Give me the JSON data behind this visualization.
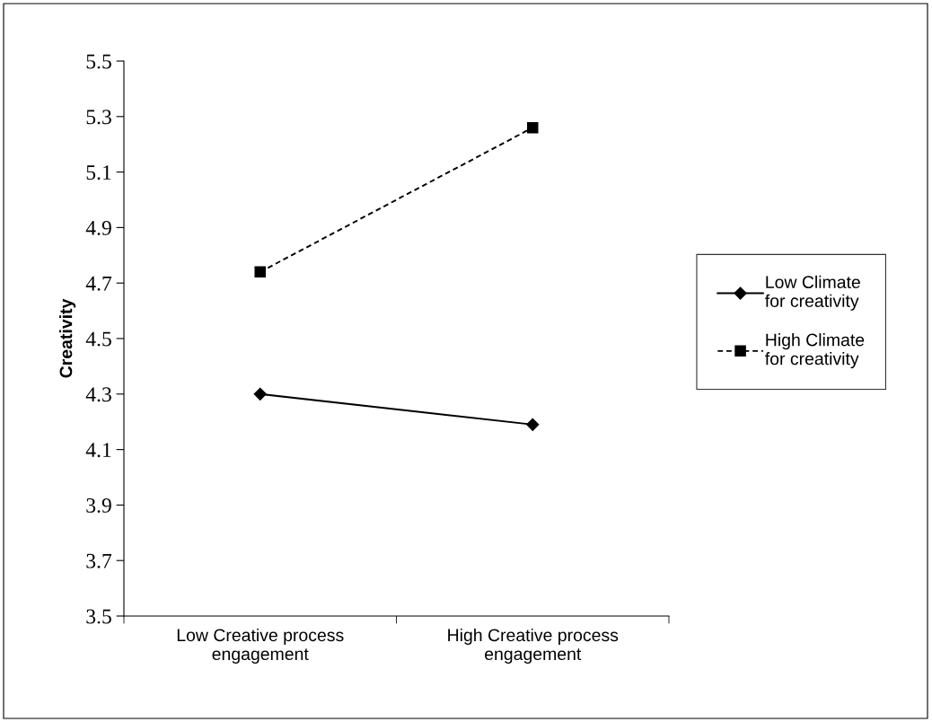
{
  "chart_data": {
    "type": "line",
    "ylabel": "Creativity",
    "categories": [
      "Low Creative process\nengagement",
      "High Creative process\nengagement"
    ],
    "series": [
      {
        "name": "Low Climate\nfor creativity",
        "color": "#000000",
        "values": [
          4.3,
          4.19
        ],
        "marker": "diamond",
        "line_style": "solid"
      },
      {
        "name": "High Climate\nfor creativity",
        "color": "#000000",
        "values": [
          4.74,
          5.26
        ],
        "marker": "square",
        "line_style": "dashed"
      }
    ],
    "ylim": [
      3.5,
      5.5
    ],
    "yticks": [
      {
        "value": 3.5,
        "label": "3.5"
      },
      {
        "value": 3.7,
        "label": "3.7"
      },
      {
        "value": 3.9,
        "label": "3.9"
      },
      {
        "value": 4.1,
        "label": "4.1"
      },
      {
        "value": 4.3,
        "label": "4.3"
      },
      {
        "value": 4.5,
        "label": "4.5"
      },
      {
        "value": 4.7,
        "label": "4.7"
      },
      {
        "value": 4.9,
        "label": "4.9"
      },
      {
        "value": 5.1,
        "label": "5.1"
      },
      {
        "value": 5.3,
        "label": "5.3"
      },
      {
        "value": 5.5,
        "label": "5.5"
      }
    ],
    "grid": false,
    "legend": "right"
  }
}
